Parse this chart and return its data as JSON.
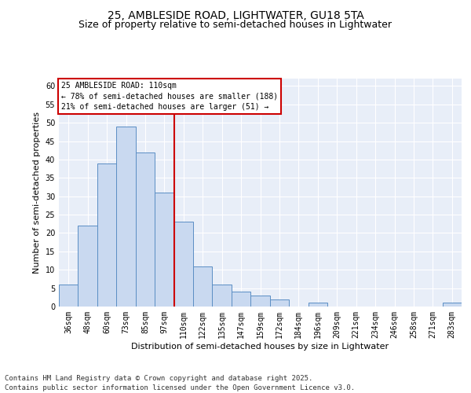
{
  "title1": "25, AMBLESIDE ROAD, LIGHTWATER, GU18 5TA",
  "title2": "Size of property relative to semi-detached houses in Lightwater",
  "xlabel": "Distribution of semi-detached houses by size in Lightwater",
  "ylabel": "Number of semi-detached properties",
  "footer": "Contains HM Land Registry data © Crown copyright and database right 2025.\nContains public sector information licensed under the Open Government Licence v3.0.",
  "categories": [
    "36sqm",
    "48sqm",
    "60sqm",
    "73sqm",
    "85sqm",
    "97sqm",
    "110sqm",
    "122sqm",
    "135sqm",
    "147sqm",
    "159sqm",
    "172sqm",
    "184sqm",
    "196sqm",
    "209sqm",
    "221sqm",
    "234sqm",
    "246sqm",
    "258sqm",
    "271sqm",
    "283sqm"
  ],
  "values": [
    6,
    22,
    39,
    49,
    42,
    31,
    23,
    11,
    6,
    4,
    3,
    2,
    0,
    1,
    0,
    0,
    0,
    0,
    0,
    0,
    1
  ],
  "bar_color": "#c9d9f0",
  "bar_edge_color": "#5b8ec4",
  "vline_color": "#cc0000",
  "ylim": [
    0,
    62
  ],
  "yticks": [
    0,
    5,
    10,
    15,
    20,
    25,
    30,
    35,
    40,
    45,
    50,
    55,
    60
  ],
  "annotation_title": "25 AMBLESIDE ROAD: 110sqm",
  "annotation_line1": "← 78% of semi-detached houses are smaller (188)",
  "annotation_line2": "21% of semi-detached houses are larger (51) →",
  "annotation_box_color": "#cc0000",
  "bg_color": "#e8eef8",
  "grid_color": "#ffffff",
  "title1_fontsize": 10,
  "title2_fontsize": 9,
  "axis_label_fontsize": 8,
  "tick_fontsize": 7,
  "annot_fontsize": 7,
  "footer_fontsize": 6.5
}
